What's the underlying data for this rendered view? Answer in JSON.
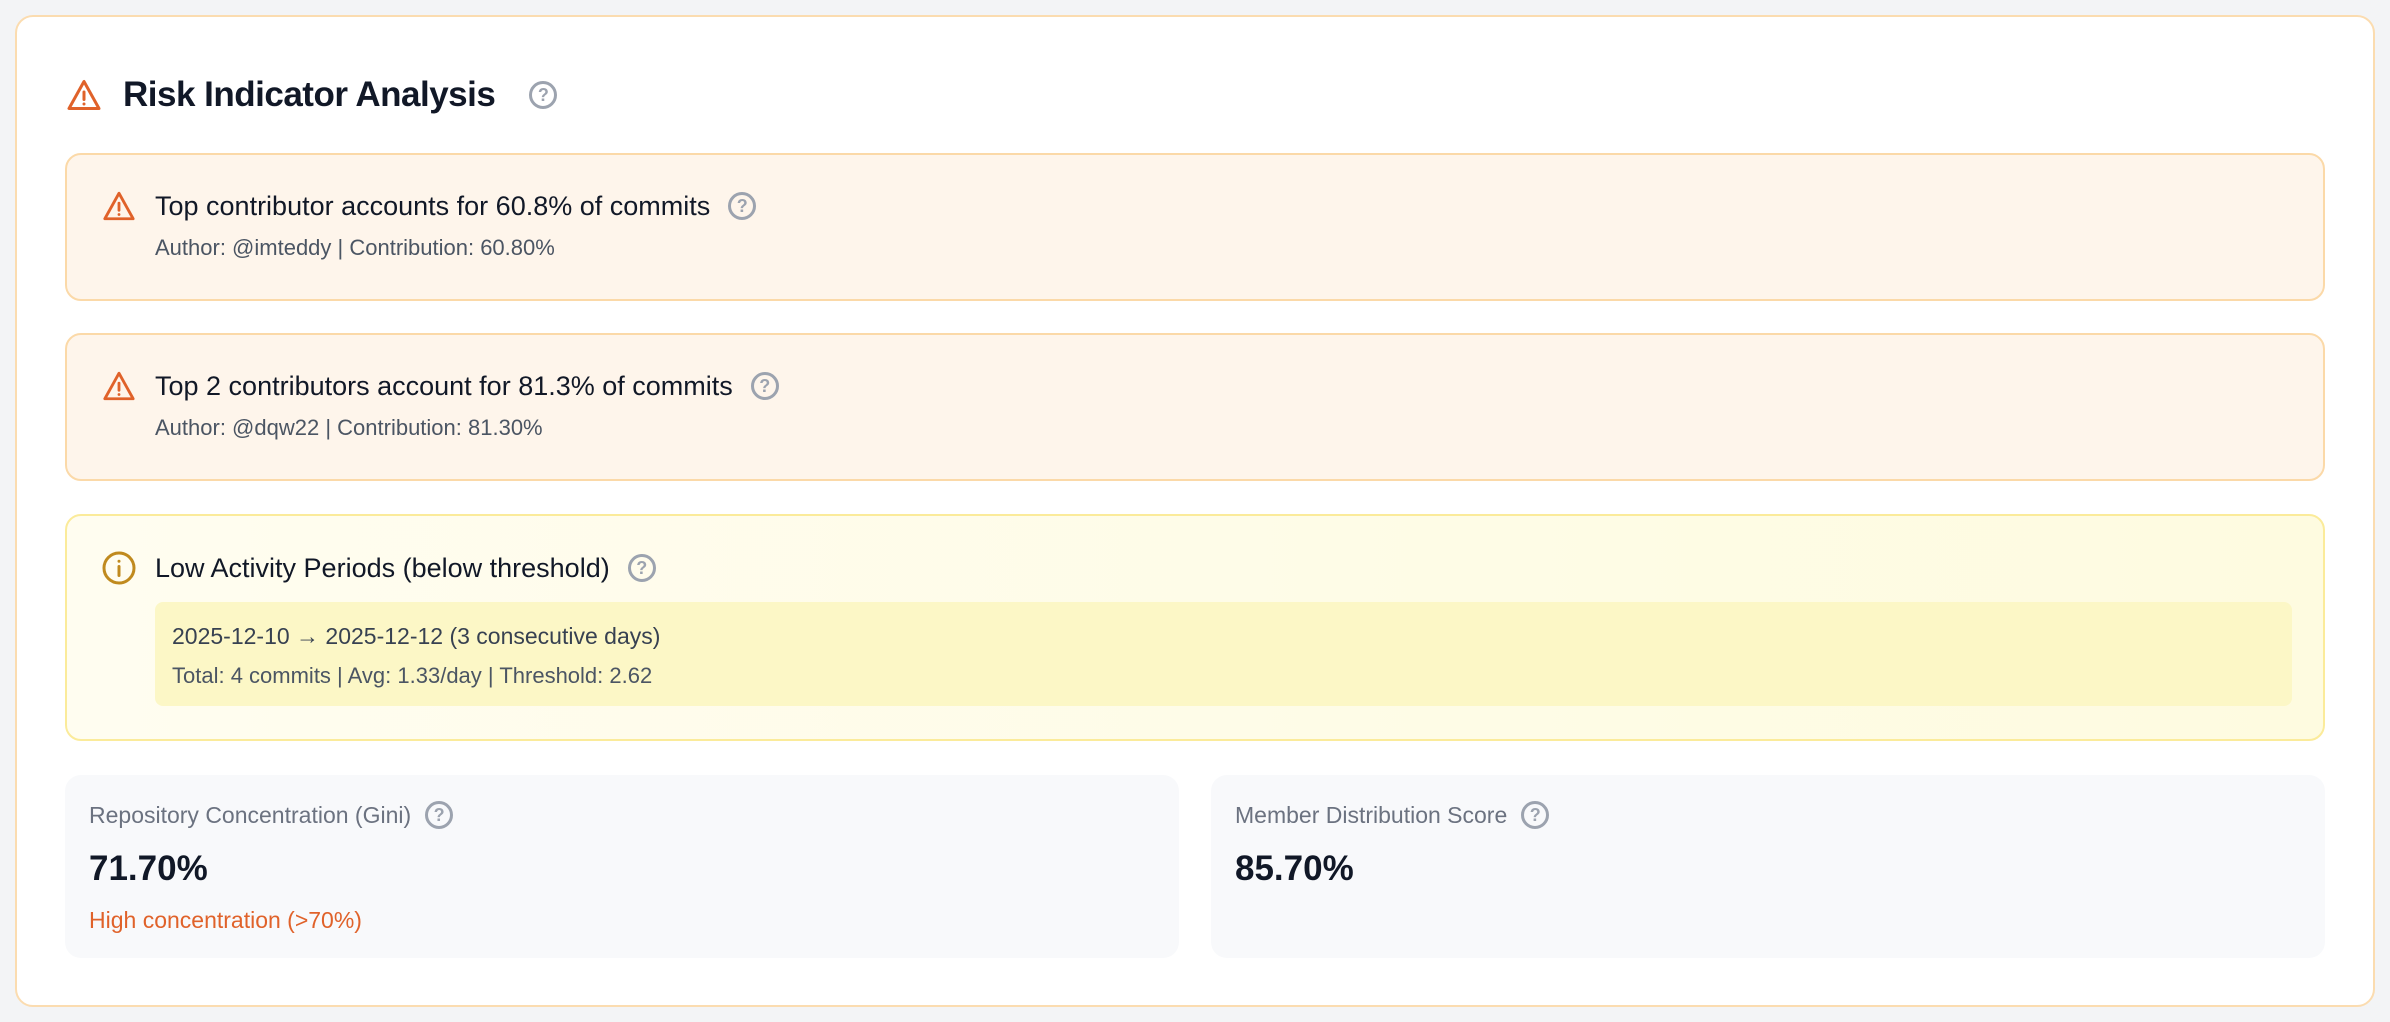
{
  "title": "Risk Indicator Analysis",
  "alerts": [
    {
      "title": "Top contributor accounts for 60.8% of commits",
      "detail": "Author: @imteddy | Contribution: 60.80%",
      "icon": "warning-icon"
    },
    {
      "title": "Top 2 contributors account for 81.3% of commits",
      "detail": "Author: @dqw22 | Contribution: 81.30%",
      "icon": "warning-icon"
    }
  ],
  "low_activity": {
    "title": "Low Activity Periods (below threshold)",
    "icon": "info-icon",
    "periods": [
      {
        "range": "2025-12-10 → 2025-12-12 (3 consecutive days)",
        "summary": "Total: 4 commits | Avg: 1.33/day | Threshold: 2.62"
      }
    ]
  },
  "stats": [
    {
      "label": "Repository Concentration (Gini)",
      "value": "71.70%",
      "note": "High concentration (>70%)"
    },
    {
      "label": "Member Distribution Score",
      "value": "85.70%"
    }
  ],
  "help_symbol": "?",
  "colors": {
    "warning": "#e0622a",
    "info": "#c08a1e",
    "note": "#e0622a"
  }
}
